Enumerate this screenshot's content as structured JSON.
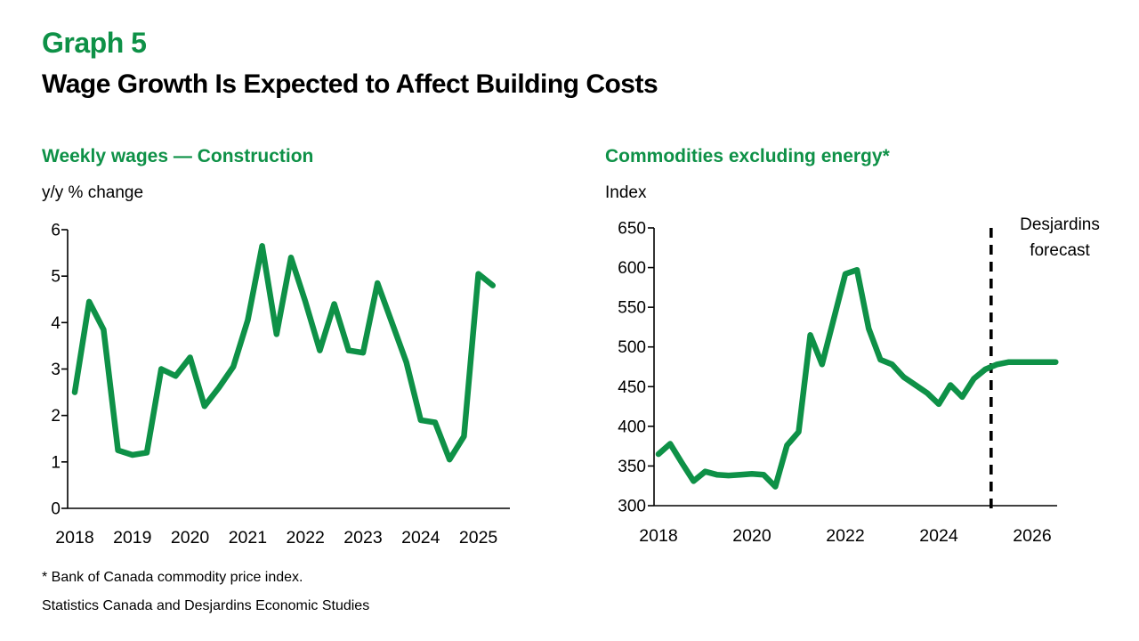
{
  "header": {
    "graph_label": "Graph 5",
    "title": "Wage Growth Is Expected to Affect Building Costs"
  },
  "colors": {
    "green": "#0e9147",
    "black": "#000000"
  },
  "footnotes": [
    "* Bank of Canada commodity price index.",
    "Statistics Canada and Desjardins Economic Studies"
  ],
  "chart_data": [
    {
      "id": "wages-construction",
      "type": "line",
      "title": "Weekly wages — Construction",
      "unit_label": "y/y % change",
      "line_color": "#0e9147",
      "ylim": [
        0,
        6
      ],
      "yticks": [
        0,
        1,
        2,
        3,
        4,
        5,
        6
      ],
      "xticks": [
        2018,
        2019,
        2020,
        2021,
        2022,
        2023,
        2024,
        2025
      ],
      "xlim": [
        2017.85,
        2025.6
      ],
      "grid": false,
      "legend": "none",
      "x": [
        2018.0,
        2018.25,
        2018.5,
        2018.75,
        2019.0,
        2019.25,
        2019.5,
        2019.75,
        2020.0,
        2020.25,
        2020.5,
        2020.75,
        2021.0,
        2021.25,
        2021.5,
        2021.75,
        2022.0,
        2022.25,
        2022.5,
        2022.75,
        2023.0,
        2023.25,
        2023.5,
        2023.75,
        2024.0,
        2024.25,
        2024.5,
        2024.75,
        2025.0,
        2025.25
      ],
      "values": [
        2.5,
        4.45,
        3.85,
        1.25,
        1.15,
        1.2,
        3.0,
        2.85,
        3.25,
        2.2,
        2.6,
        3.05,
        4.05,
        5.65,
        3.75,
        5.4,
        4.45,
        3.4,
        4.4,
        3.4,
        3.35,
        4.85,
        4.0,
        3.15,
        1.9,
        1.85,
        1.05,
        1.55,
        5.05,
        4.8
      ]
    },
    {
      "id": "commodities-ex-energy",
      "type": "line",
      "title": "Commodities excluding energy*",
      "unit_label": "Index",
      "line_color": "#0e9147",
      "ylim": [
        300,
        650
      ],
      "yticks": [
        300,
        350,
        400,
        450,
        500,
        550,
        600,
        650
      ],
      "xticks": [
        2018,
        2020,
        2022,
        2024,
        2026
      ],
      "xlim": [
        2017.9,
        2026.55
      ],
      "grid": false,
      "legend": "none",
      "forecast_start_x": 2025.12,
      "annotation": {
        "text": "Desjardins forecast",
        "lines": [
          "Desjardins",
          "forecast"
        ]
      },
      "x": [
        2018.0,
        2018.25,
        2018.5,
        2018.75,
        2019.0,
        2019.25,
        2019.5,
        2019.75,
        2020.0,
        2020.25,
        2020.5,
        2020.75,
        2021.0,
        2021.25,
        2021.5,
        2021.75,
        2022.0,
        2022.25,
        2022.5,
        2022.75,
        2023.0,
        2023.25,
        2023.5,
        2023.75,
        2024.0,
        2024.25,
        2024.5,
        2024.75,
        2025.0,
        2025.25,
        2025.5,
        2025.75,
        2026.0,
        2026.25,
        2026.5
      ],
      "values": [
        365,
        378,
        354,
        331,
        343,
        339,
        338,
        339,
        340,
        339,
        324,
        376,
        393,
        515,
        478,
        535,
        592,
        597,
        523,
        484,
        478,
        462,
        452,
        442,
        428,
        452,
        437,
        460,
        472,
        478,
        481,
        481,
        481,
        481,
        481
      ]
    }
  ]
}
